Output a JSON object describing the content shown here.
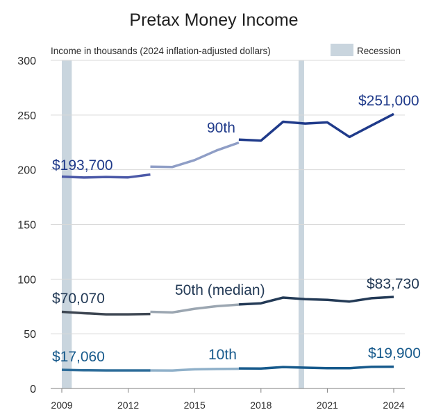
{
  "chart_data": {
    "type": "line",
    "title": "Pretax Money Income",
    "subtitle": "Income in thousands (2024 inflation-adjusted dollars)",
    "legend": {
      "label": "Recession",
      "color": "#c9d5de",
      "placement": "top-right"
    },
    "ylim": [
      0,
      300
    ],
    "yticks": [
      0,
      50,
      100,
      150,
      200,
      250,
      300
    ],
    "xlim": [
      2009,
      2024
    ],
    "xticks": [
      2009,
      2012,
      2015,
      2018,
      2021,
      2024
    ],
    "recessions": [
      [
        2009,
        2009.45
      ],
      [
        2019.7,
        2019.95
      ]
    ],
    "series": [
      {
        "name": "90th",
        "color": "#1f3a8a",
        "segments": [
          {
            "color": "#4b59a8",
            "x": [
              2009,
              2010,
              2011,
              2012,
              2013
            ],
            "values": [
              193.7,
              192.9,
              193.4,
              193.0,
              195.6
            ]
          },
          {
            "color": "#8f9ec6",
            "x": [
              2013,
              2014,
              2015,
              2016,
              2017
            ],
            "values": [
              202.8,
              202.5,
              208.8,
              217.7,
              224.8
            ]
          },
          {
            "color": "#1f3a8a",
            "x": [
              2017,
              2018,
              2019,
              2020,
              2021,
              2022,
              2023,
              2024
            ],
            "values": [
              227.5,
              226.6,
              243.9,
              242.2,
              243.3,
              230.0,
              240.5,
              251.0
            ]
          }
        ],
        "start_label": "$193,700",
        "name_label": "90th",
        "end_label": "$251,000"
      },
      {
        "name": "50th (median)",
        "color": "#233a56",
        "segments": [
          {
            "color": "#3d4652",
            "x": [
              2009,
              2010,
              2011,
              2012,
              2013
            ],
            "values": [
              70.07,
              68.8,
              67.8,
              67.8,
              68.1
            ]
          },
          {
            "color": "#9ba6b1",
            "x": [
              2013,
              2014,
              2015,
              2016,
              2017
            ],
            "values": [
              70.1,
              69.5,
              72.9,
              75.2,
              76.7
            ]
          },
          {
            "color": "#233a56",
            "x": [
              2017,
              2018,
              2019,
              2020,
              2021,
              2022,
              2023,
              2024
            ],
            "values": [
              76.8,
              77.9,
              83.1,
              81.6,
              81.0,
              79.5,
              82.5,
              83.73
            ]
          }
        ],
        "start_label": "$70,070",
        "name_label": "50th (median)",
        "end_label": "$83,730"
      },
      {
        "name": "10th",
        "color": "#175a8c",
        "segments": [
          {
            "color": "#2e6d9a",
            "x": [
              2009,
              2010,
              2011,
              2012,
              2013
            ],
            "values": [
              17.06,
              16.7,
              16.5,
              16.5,
              16.5
            ]
          },
          {
            "color": "#8fb0c9",
            "x": [
              2013,
              2014,
              2015,
              2016,
              2017
            ],
            "values": [
              16.5,
              16.4,
              17.5,
              17.8,
              18.0
            ]
          },
          {
            "color": "#175a8c",
            "x": [
              2017,
              2018,
              2019,
              2020,
              2021,
              2022,
              2023,
              2024
            ],
            "values": [
              18.3,
              18.2,
              19.6,
              19.0,
              18.5,
              18.6,
              19.8,
              19.9
            ]
          }
        ],
        "start_label": "$17,060",
        "name_label": "10th",
        "end_label": "$19,900"
      }
    ]
  }
}
